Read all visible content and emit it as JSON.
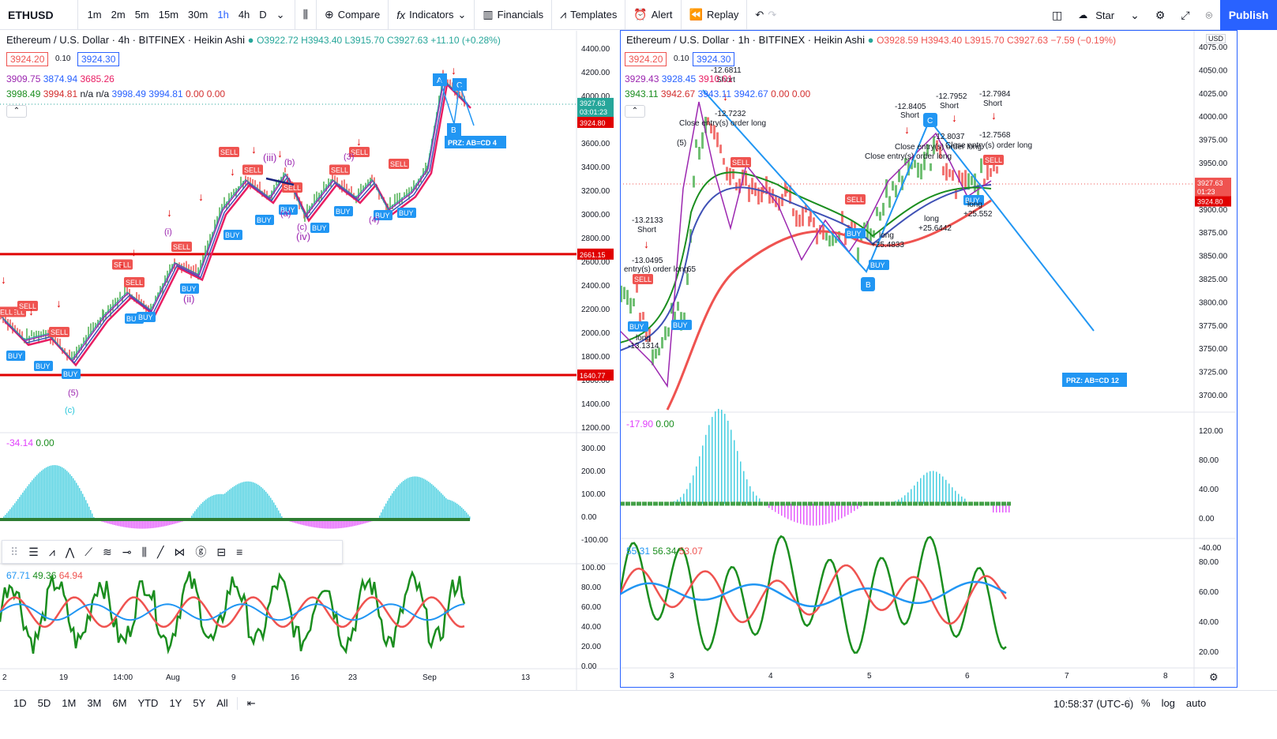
{
  "toolbar": {
    "symbol": "ETHUSD",
    "intervals": [
      "1m",
      "2m",
      "5m",
      "15m",
      "30m",
      "1h",
      "4h",
      "D"
    ],
    "active_interval": "1h",
    "compare": "Compare",
    "indicators": "Indicators",
    "financials": "Financials",
    "templates": "Templates",
    "alert": "Alert",
    "replay": "Replay",
    "layout_name": "Star",
    "publish": "Publish"
  },
  "left_chart": {
    "title": "Ethereum / U.S. Dollar · 4h · BITFINEX · Heikin Ashi",
    "ohlc": {
      "o": "O3922.72",
      "h": "H3943.40",
      "l": "L3915.70",
      "c": "C3927.63",
      "chg": "+11.10 (+0.28%)"
    },
    "bid": "3924.20",
    "spread": "0.10",
    "ask": "3924.30",
    "ind1": [
      "3909.75",
      "3874.94",
      "3685.26"
    ],
    "ind2": [
      "3998.49",
      "3994.81",
      "n/a",
      "n/a",
      "3998.49",
      "3994.81",
      "0.00",
      "0.00"
    ],
    "price_axis": [
      "4400.00",
      "4200.00",
      "4000.00",
      "3800.00",
      "3600.00",
      "3400.00",
      "3200.00",
      "3000.00",
      "2800.00",
      "2600.00",
      "2400.00",
      "2200.00",
      "2000.00",
      "1800.00",
      "1600.00",
      "1400.00",
      "1200.00"
    ],
    "last_price": "3927.63",
    "countdown": "03:01:23",
    "bid_tag": "3924.80",
    "hline_high": "2661.15",
    "hline_low": "1640.77",
    "prz_label": "PRZ: AB=CD 4",
    "wave_labels": [
      "(i)",
      "(ii)",
      "(iii)",
      "(iv)",
      "(5)",
      "(c)",
      "(a)",
      "(b)",
      "(c)",
      "(3)",
      "(4)",
      "A",
      "B",
      "C"
    ],
    "osc_value": "-34.14",
    "osc_zero": "0.00",
    "osc_axis": [
      "300.00",
      "200.00",
      "100.00",
      "0.00",
      "-100.00"
    ],
    "rsi_vals": [
      "67.71",
      "49.36",
      "64.94"
    ],
    "rsi_axis": [
      "100.00",
      "80.00",
      "60.00",
      "40.00",
      "20.00",
      "0.00"
    ],
    "time_axis": [
      "2",
      "19",
      "14:00",
      "Aug",
      "9",
      "16",
      "23",
      "Sep",
      "13"
    ]
  },
  "right_chart": {
    "title": "Ethereum / U.S. Dollar · 1h · BITFINEX · Heikin Ashi",
    "ohlc": {
      "o": "O3928.59",
      "h": "H3943.40",
      "l": "L3915.70",
      "c": "C3927.63",
      "chg": "−7.59 (−0.19%)"
    },
    "bid": "3924.20",
    "spread": "0.10",
    "ask": "3924.30",
    "ind1": [
      "3929.43",
      "3928.45",
      "3910.01"
    ],
    "ind2": [
      "3943.11",
      "3942.67",
      "3943.11",
      "3942.67",
      "0.00",
      "0.00"
    ],
    "currency": "USD",
    "price_axis": [
      "4075.00",
      "4050.00",
      "4025.00",
      "4000.00",
      "3975.00",
      "3950.00",
      "3925.00",
      "3900.00",
      "3875.00",
      "3850.00",
      "3825.00",
      "3800.00",
      "3775.00",
      "3750.00",
      "3725.00",
      "3700.00"
    ],
    "last_price": "3927.63",
    "countdown": "01:23",
    "bid_tag": "3924.80",
    "prz_label": "PRZ: AB=CD 12",
    "annotations": [
      "-13.2133",
      "Short",
      "-13.0495",
      "entry(s) order long",
      "65",
      "long",
      "-13.1314",
      "-12.7232",
      "Close entry(s) order long",
      "-12.8405",
      "Short",
      "-12.7952",
      "Short",
      "-12.7984",
      "Short",
      "-12.8037",
      "-12.7568",
      "Close entry(s) order long",
      "Close entry(s) order long",
      "Close entry(s) order long",
      "long",
      "+25.6442",
      "long",
      "+25.4833",
      "long",
      "+25.552",
      "(5)",
      "B",
      "C",
      "BUY",
      "SELL",
      "-12.6811",
      "Short"
    ],
    "osc_value": "-17.90",
    "osc_zero": "0.00",
    "osc_axis": [
      "120.00",
      "80.00",
      "40.00",
      "0.00",
      "-40.00"
    ],
    "rsi_vals": [
      "55.31",
      "56.34",
      "53.07"
    ],
    "rsi_axis": [
      "80.00",
      "60.00",
      "40.00",
      "20.00"
    ],
    "time_axis": [
      "3",
      "4",
      "5",
      "6",
      "7",
      "8"
    ]
  },
  "bottom": {
    "ranges": [
      "1D",
      "5D",
      "1M",
      "3M",
      "6M",
      "YTD",
      "1Y",
      "5Y",
      "All"
    ],
    "time": "10:58:37 (UTC-6)",
    "percent": "%",
    "log": "log",
    "auto": "auto"
  }
}
